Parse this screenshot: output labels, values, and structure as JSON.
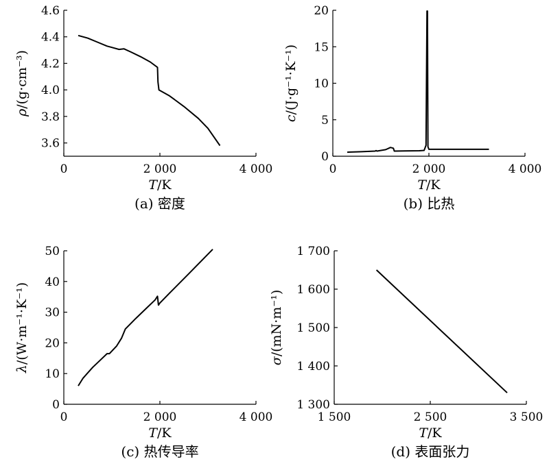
{
  "chart_data": [
    {
      "id": "a",
      "type": "line",
      "caption": "(a) 密度",
      "xlabel": "T/K",
      "ylabel": "ρ/(g·cm⁻³)",
      "xlim": [
        0,
        4000
      ],
      "ylim": [
        3.5,
        4.6
      ],
      "xticks": [
        0,
        2000,
        4000
      ],
      "xtick_labels": [
        "0",
        "2 000",
        "4 000"
      ],
      "yticks": [
        3.6,
        3.8,
        4.0,
        4.2,
        4.4,
        4.6
      ],
      "ytick_labels": [
        "3.6",
        "3.8",
        "4.0",
        "4.2",
        "4.4",
        "4.6"
      ],
      "grid": false,
      "series": [
        {
          "x": [
            300,
            500,
            700,
            900,
            1000,
            1150,
            1250,
            1400,
            1600,
            1800,
            1950,
            1960,
            1980,
            2200,
            2500,
            2800,
            3000,
            3250
          ],
          "y": [
            4.41,
            4.39,
            4.36,
            4.33,
            4.32,
            4.305,
            4.31,
            4.285,
            4.25,
            4.21,
            4.17,
            4.06,
            4.0,
            3.955,
            3.875,
            3.785,
            3.71,
            3.58
          ]
        }
      ]
    },
    {
      "id": "b",
      "type": "line",
      "caption": "(b) 比热",
      "xlabel": "T/K",
      "ylabel": "c/(J·g⁻¹·K⁻¹)",
      "xlim": [
        0,
        4000
      ],
      "ylim": [
        0,
        20
      ],
      "xticks": [
        0,
        2000,
        4000
      ],
      "xtick_labels": [
        "0",
        "2 000",
        "4 000"
      ],
      "yticks": [
        0,
        5,
        10,
        15,
        20
      ],
      "ytick_labels": [
        "0",
        "5",
        "10",
        "15",
        "20"
      ],
      "grid": false,
      "series": [
        {
          "x": [
            300,
            600,
            880,
            900,
            920,
            1100,
            1200,
            1260,
            1280,
            1500,
            1800,
            1900,
            1940,
            1960,
            1970,
            1980,
            2000,
            2500,
            3000,
            3250
          ],
          "y": [
            0.55,
            0.62,
            0.7,
            0.78,
            0.7,
            0.9,
            1.2,
            1.1,
            0.7,
            0.73,
            0.75,
            0.8,
            1.5,
            19.9,
            19.9,
            1.3,
            0.95,
            0.95,
            0.95,
            0.95
          ]
        }
      ]
    },
    {
      "id": "c",
      "type": "line",
      "caption": "(c) 热传导率",
      "xlabel": "T/K",
      "ylabel": "λ/(W·m⁻¹·K⁻¹)",
      "xlim": [
        0,
        4000
      ],
      "ylim": [
        0,
        50
      ],
      "xticks": [
        0,
        2000,
        4000
      ],
      "xtick_labels": [
        "0",
        "2 000",
        "4 000"
      ],
      "yticks": [
        0,
        10,
        20,
        30,
        40,
        50
      ],
      "ytick_labels": [
        "0",
        "10",
        "20",
        "30",
        "40",
        "50"
      ],
      "grid": false,
      "series": [
        {
          "x": [
            300,
            400,
            600,
            800,
            900,
            950,
            1100,
            1200,
            1280,
            1500,
            1700,
            1900,
            1950,
            1970,
            2000,
            2200,
            2600,
            3100
          ],
          "y": [
            6.0,
            8.5,
            12.0,
            15.0,
            16.5,
            16.5,
            19.0,
            21.5,
            24.5,
            28.0,
            31.0,
            34.0,
            35.2,
            32.3,
            33.0,
            36.2,
            42.5,
            50.5
          ]
        }
      ]
    },
    {
      "id": "d",
      "type": "line",
      "caption": "(d) 表面张力",
      "xlabel": "T/K",
      "ylabel": "σ/(mN·m⁻¹)",
      "xlim": [
        1500,
        3500
      ],
      "ylim": [
        1300,
        1700
      ],
      "xticks": [
        1500,
        2500,
        3500
      ],
      "xtick_labels": [
        "1 500",
        "2 500",
        "3 500"
      ],
      "yticks": [
        1300,
        1400,
        1500,
        1600,
        1700
      ],
      "ytick_labels": [
        "1 300",
        "1 400",
        "1 500",
        "1 600",
        "1 700"
      ],
      "grid": false,
      "series": [
        {
          "x": [
            1940,
            3300
          ],
          "y": [
            1650,
            1330
          ]
        }
      ]
    }
  ]
}
